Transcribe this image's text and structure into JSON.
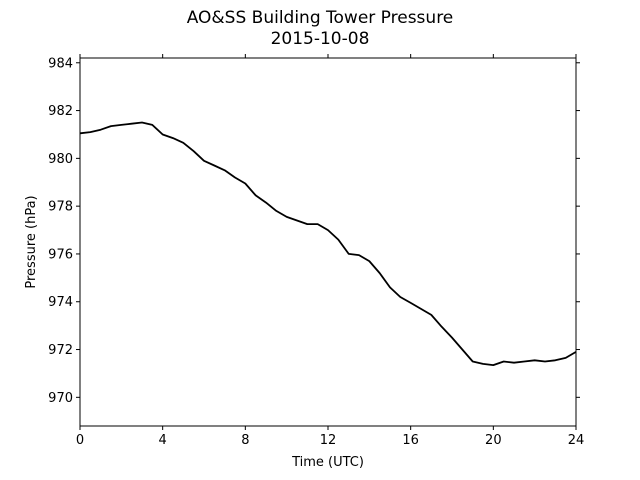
{
  "chart_data": {
    "type": "line",
    "title": "AO&SS Building Tower Pressure",
    "subtitle": "2015-10-08",
    "xlabel": "Time (UTC)",
    "ylabel": "Pressure (hPa)",
    "xlim": [
      0,
      24
    ],
    "ylim": [
      968.8,
      984.2
    ],
    "xticks": [
      0,
      4,
      8,
      12,
      16,
      20,
      24
    ],
    "yticks": [
      970,
      972,
      974,
      976,
      978,
      980,
      982,
      984
    ],
    "grid": false,
    "line_color": "#000000",
    "series": [
      {
        "x": [
          0,
          0.5,
          1,
          1.5,
          2,
          2.5,
          3,
          3.5,
          4,
          4.5,
          5,
          5.5,
          6,
          6.5,
          7,
          7.5,
          8,
          8.5,
          9,
          9.5,
          10,
          10.5,
          11,
          11.5,
          12,
          12.5,
          13,
          13.5,
          14,
          14.5,
          15,
          15.5,
          16,
          16.5,
          17,
          17.5,
          18,
          18.5,
          19,
          19.5,
          20,
          20.5,
          21,
          21.5,
          22,
          22.5,
          23,
          23.5,
          24
        ],
        "y": [
          981.05,
          981.1,
          981.2,
          981.35,
          981.4,
          981.45,
          981.5,
          981.4,
          981.0,
          980.85,
          980.65,
          980.3,
          979.9,
          979.7,
          979.5,
          979.2,
          978.95,
          978.45,
          978.15,
          977.8,
          977.55,
          977.4,
          977.25,
          977.25,
          977.0,
          976.6,
          976.0,
          975.95,
          975.7,
          975.2,
          974.6,
          974.2,
          973.95,
          973.7,
          973.45,
          972.95,
          972.5,
          972.0,
          971.5,
          971.4,
          971.35,
          971.5,
          971.45,
          971.5,
          971.55,
          971.5,
          971.55,
          971.65,
          971.9
        ]
      }
    ]
  }
}
